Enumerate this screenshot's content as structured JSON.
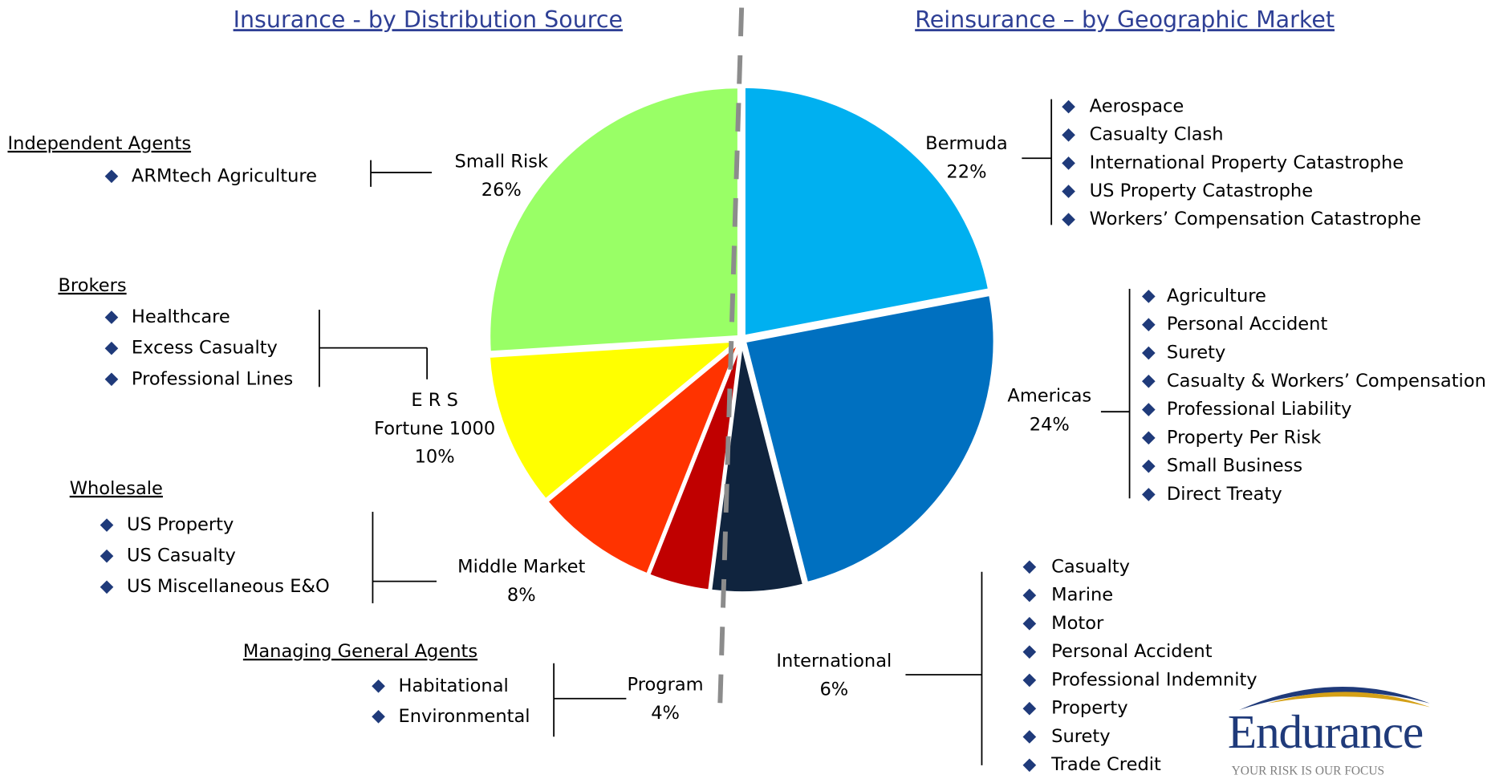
{
  "chart_data": {
    "type": "pie",
    "left_title": "Insurance - by Distribution Source",
    "right_title": "Reinsurance – by Geographic Market",
    "categories": [
      "Bermuda",
      "Americas",
      "International",
      "Program",
      "Middle Market",
      "E R S\nFortune 1000",
      "Small Risk"
    ],
    "values": [
      22,
      24,
      6,
      4,
      8,
      10,
      26
    ],
    "value_labels": [
      "22%",
      "24%",
      "6%",
      "4%",
      "8%",
      "10%",
      "26%"
    ],
    "colors": [
      "#00b0f0",
      "#0070c0",
      "#10243e",
      "#c00000",
      "#ff3300",
      "#ffff00",
      "#99ff66"
    ],
    "details": [
      {
        "items": [
          "Aerospace",
          "Casualty Clash",
          "International Property Catastrophe",
          "US Property Catastrophe",
          "Workers’ Compensation Catastrophe"
        ]
      },
      {
        "items": [
          "Agriculture",
          "Personal Accident",
          "Surety",
          "Casualty & Workers’ Compensation",
          "Professional Liability",
          "Property Per Risk",
          "Small Business",
          "Direct Treaty"
        ]
      },
      {
        "items": [
          "Casualty",
          "Marine",
          "Motor",
          "Personal Accident",
          "Professional Indemnity",
          "Property",
          "Surety",
          "Trade Credit"
        ]
      },
      {
        "heading": "Managing General Agents",
        "items": [
          "Habitational",
          "Environmental"
        ]
      },
      {
        "heading": "Wholesale",
        "items": [
          "US Property",
          "US Casualty",
          "US Miscellaneous E&O"
        ]
      },
      {
        "heading": "Brokers",
        "items": [
          "Healthcare",
          "Excess Casualty",
          "Professional Lines"
        ]
      },
      {
        "heading": "Independent Agents",
        "items": [
          "ARMtech Agriculture"
        ]
      }
    ],
    "logo": {
      "name": "Endurance",
      "tagline": "YOUR RISK IS OUR FOCUS"
    }
  }
}
